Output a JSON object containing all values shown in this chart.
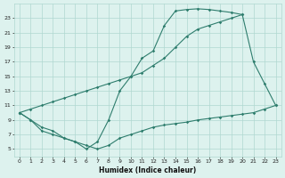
{
  "line1_x": [
    0,
    1,
    2,
    3,
    4,
    5,
    6,
    7,
    8,
    9,
    10,
    11,
    12,
    13,
    14,
    15,
    16,
    17,
    18,
    19,
    20,
    21,
    22,
    23
  ],
  "line1_y": [
    10,
    9,
    8,
    7.5,
    6.5,
    6,
    5,
    6,
    9,
    13,
    15,
    17.5,
    18.5,
    22,
    24,
    24.2,
    24.3,
    24.2,
    24,
    23.8,
    23.5,
    17,
    14,
    11
  ],
  "line2_x": [
    0,
    1,
    2,
    3,
    4,
    5,
    6,
    7,
    8,
    9,
    10,
    11,
    12,
    13,
    14,
    15,
    16,
    17,
    18,
    19,
    20
  ],
  "line2_y": [
    10,
    10.5,
    11,
    11.5,
    12,
    12.5,
    13,
    13.5,
    14,
    14.5,
    15,
    15.5,
    16.5,
    17.5,
    19,
    20.5,
    21.5,
    22,
    22.5,
    23,
    23.5
  ],
  "line3_x": [
    0,
    1,
    2,
    3,
    4,
    5,
    6,
    7,
    8,
    9,
    10,
    11,
    12,
    13,
    14,
    15,
    16,
    17,
    18,
    19,
    20,
    21,
    22,
    23
  ],
  "line3_y": [
    10,
    9,
    7.5,
    7,
    6.5,
    6,
    5.5,
    5,
    5.5,
    6.5,
    7,
    7.5,
    8,
    8.3,
    8.5,
    8.7,
    9,
    9.2,
    9.4,
    9.6,
    9.8,
    10,
    10.5,
    11
  ],
  "color": "#2e7d6d",
  "bg_color": "#ddf2ee",
  "grid_color": "#b0d8d0",
  "xlim": [
    -0.5,
    23.5
  ],
  "ylim": [
    4,
    25
  ],
  "xticks": [
    0,
    1,
    2,
    3,
    4,
    5,
    6,
    7,
    8,
    9,
    10,
    11,
    12,
    13,
    14,
    15,
    16,
    17,
    18,
    19,
    20,
    21,
    22,
    23
  ],
  "yticks": [
    5,
    7,
    9,
    11,
    13,
    15,
    17,
    19,
    21,
    23
  ],
  "xlabel": "Humidex (Indice chaleur)"
}
